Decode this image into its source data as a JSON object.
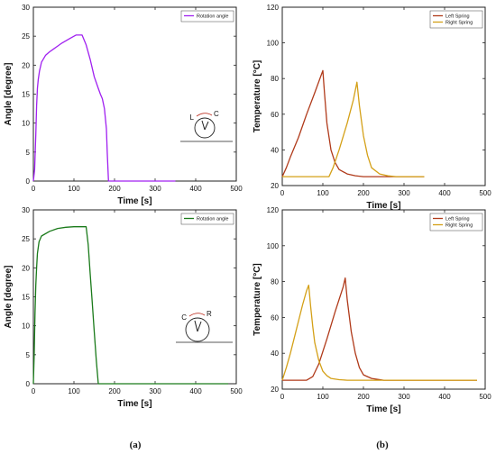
{
  "captions": {
    "left": "(a)",
    "right": "(b)"
  },
  "chart_data": [
    {
      "type": "line",
      "xlabel": "Time [s]",
      "ylabel": "Angle [degree]",
      "xlim": [
        0,
        500
      ],
      "ylim": [
        0,
        30
      ],
      "xticks": [
        0,
        100,
        200,
        300,
        400,
        500
      ],
      "yticks": [
        0,
        5,
        10,
        15,
        20,
        25,
        30
      ],
      "grid": false,
      "legend_position": "top-right",
      "inset": {
        "labels": [
          "L",
          "C"
        ]
      },
      "series": [
        {
          "name": "Rotation angle",
          "color": "#a020f0",
          "x": [
            0,
            3,
            6,
            8,
            10,
            12,
            15,
            20,
            30,
            40,
            50,
            60,
            70,
            80,
            90,
            100,
            105,
            115,
            120,
            130,
            140,
            150,
            160,
            165,
            170,
            175,
            180,
            182,
            185,
            190,
            250,
            300,
            350
          ],
          "y": [
            0,
            2,
            8,
            13,
            16,
            17.5,
            19,
            20.5,
            21.7,
            22.3,
            22.8,
            23.3,
            23.8,
            24.2,
            24.6,
            25,
            25.2,
            25.2,
            25.2,
            23.5,
            21,
            18,
            16,
            15,
            14.2,
            12.5,
            9,
            5,
            0,
            0,
            0,
            0,
            0
          ]
        }
      ]
    },
    {
      "type": "line",
      "xlabel": "Time [s]",
      "ylabel": "Temperature [°C]",
      "xlim": [
        0,
        500
      ],
      "ylim": [
        20,
        120
      ],
      "xticks": [
        0,
        100,
        200,
        300,
        400,
        500
      ],
      "yticks": [
        20,
        40,
        60,
        80,
        100,
        120
      ],
      "grid": false,
      "legend_position": "top-right",
      "series": [
        {
          "name": "Left Spring",
          "color": "#b03a1a",
          "x": [
            0,
            10,
            20,
            40,
            60,
            80,
            100,
            104,
            110,
            120,
            130,
            140,
            160,
            180,
            200,
            250,
            300,
            350
          ],
          "y": [
            25,
            30,
            36,
            47,
            60,
            72,
            84.5,
            72,
            55,
            40,
            33,
            29,
            26.5,
            25.5,
            25,
            25,
            25,
            25
          ]
        },
        {
          "name": "Right Spring",
          "color": "#d4a017",
          "x": [
            0,
            100,
            115,
            125,
            140,
            160,
            175,
            184,
            190,
            200,
            210,
            220,
            240,
            260,
            280,
            350
          ],
          "y": [
            25,
            25,
            25,
            30,
            40,
            55,
            68,
            78,
            65,
            48,
            37,
            30,
            26.5,
            25.5,
            25,
            25
          ]
        }
      ]
    },
    {
      "type": "line",
      "xlabel": "Time [s]",
      "ylabel": "Angle [degree]",
      "xlim": [
        0,
        500
      ],
      "ylim": [
        0,
        30
      ],
      "xticks": [
        0,
        100,
        200,
        300,
        400,
        500
      ],
      "yticks": [
        0,
        5,
        10,
        15,
        20,
        25,
        30
      ],
      "grid": false,
      "legend_position": "top-right",
      "inset": {
        "labels": [
          "C",
          "R"
        ]
      },
      "series": [
        {
          "name": "Rotation angle",
          "color": "#1a7a1a",
          "x": [
            0,
            2,
            4,
            6,
            8,
            10,
            14,
            20,
            40,
            60,
            80,
            100,
            120,
            130,
            135,
            140,
            145,
            150,
            155,
            160,
            170,
            200,
            300,
            400,
            480
          ],
          "y": [
            0,
            5,
            12,
            17,
            20,
            22.5,
            24.5,
            25.5,
            26.3,
            26.8,
            27,
            27.1,
            27.1,
            27.1,
            24,
            19,
            14,
            9,
            4,
            0,
            0,
            0,
            0,
            0,
            0
          ]
        }
      ]
    },
    {
      "type": "line",
      "xlabel": "Time [s]",
      "ylabel": "Temperature [°C]",
      "xlim": [
        0,
        500
      ],
      "ylim": [
        20,
        120
      ],
      "xticks": [
        0,
        100,
        200,
        300,
        400,
        500
      ],
      "yticks": [
        20,
        40,
        60,
        80,
        100,
        120
      ],
      "grid": false,
      "legend_position": "top-right",
      "series": [
        {
          "name": "Left Spring",
          "color": "#b03a1a",
          "x": [
            0,
            60,
            75,
            90,
            110,
            130,
            150,
            155,
            160,
            170,
            180,
            190,
            200,
            220,
            250,
            300,
            400,
            480
          ],
          "y": [
            25,
            25,
            27,
            34,
            48,
            63,
            77,
            82,
            70,
            52,
            40,
            32,
            28,
            26,
            25,
            25,
            25,
            25
          ]
        },
        {
          "name": "Right Spring",
          "color": "#d4a017",
          "x": [
            0,
            10,
            20,
            30,
            40,
            50,
            60,
            65,
            70,
            75,
            80,
            90,
            100,
            110,
            120,
            140,
            160,
            200,
            300,
            400,
            480
          ],
          "y": [
            25,
            32,
            40,
            49,
            58,
            67,
            75,
            78,
            66,
            55,
            46,
            36,
            30,
            27.5,
            26,
            25.3,
            25,
            25,
            25,
            25,
            25
          ]
        }
      ]
    }
  ]
}
